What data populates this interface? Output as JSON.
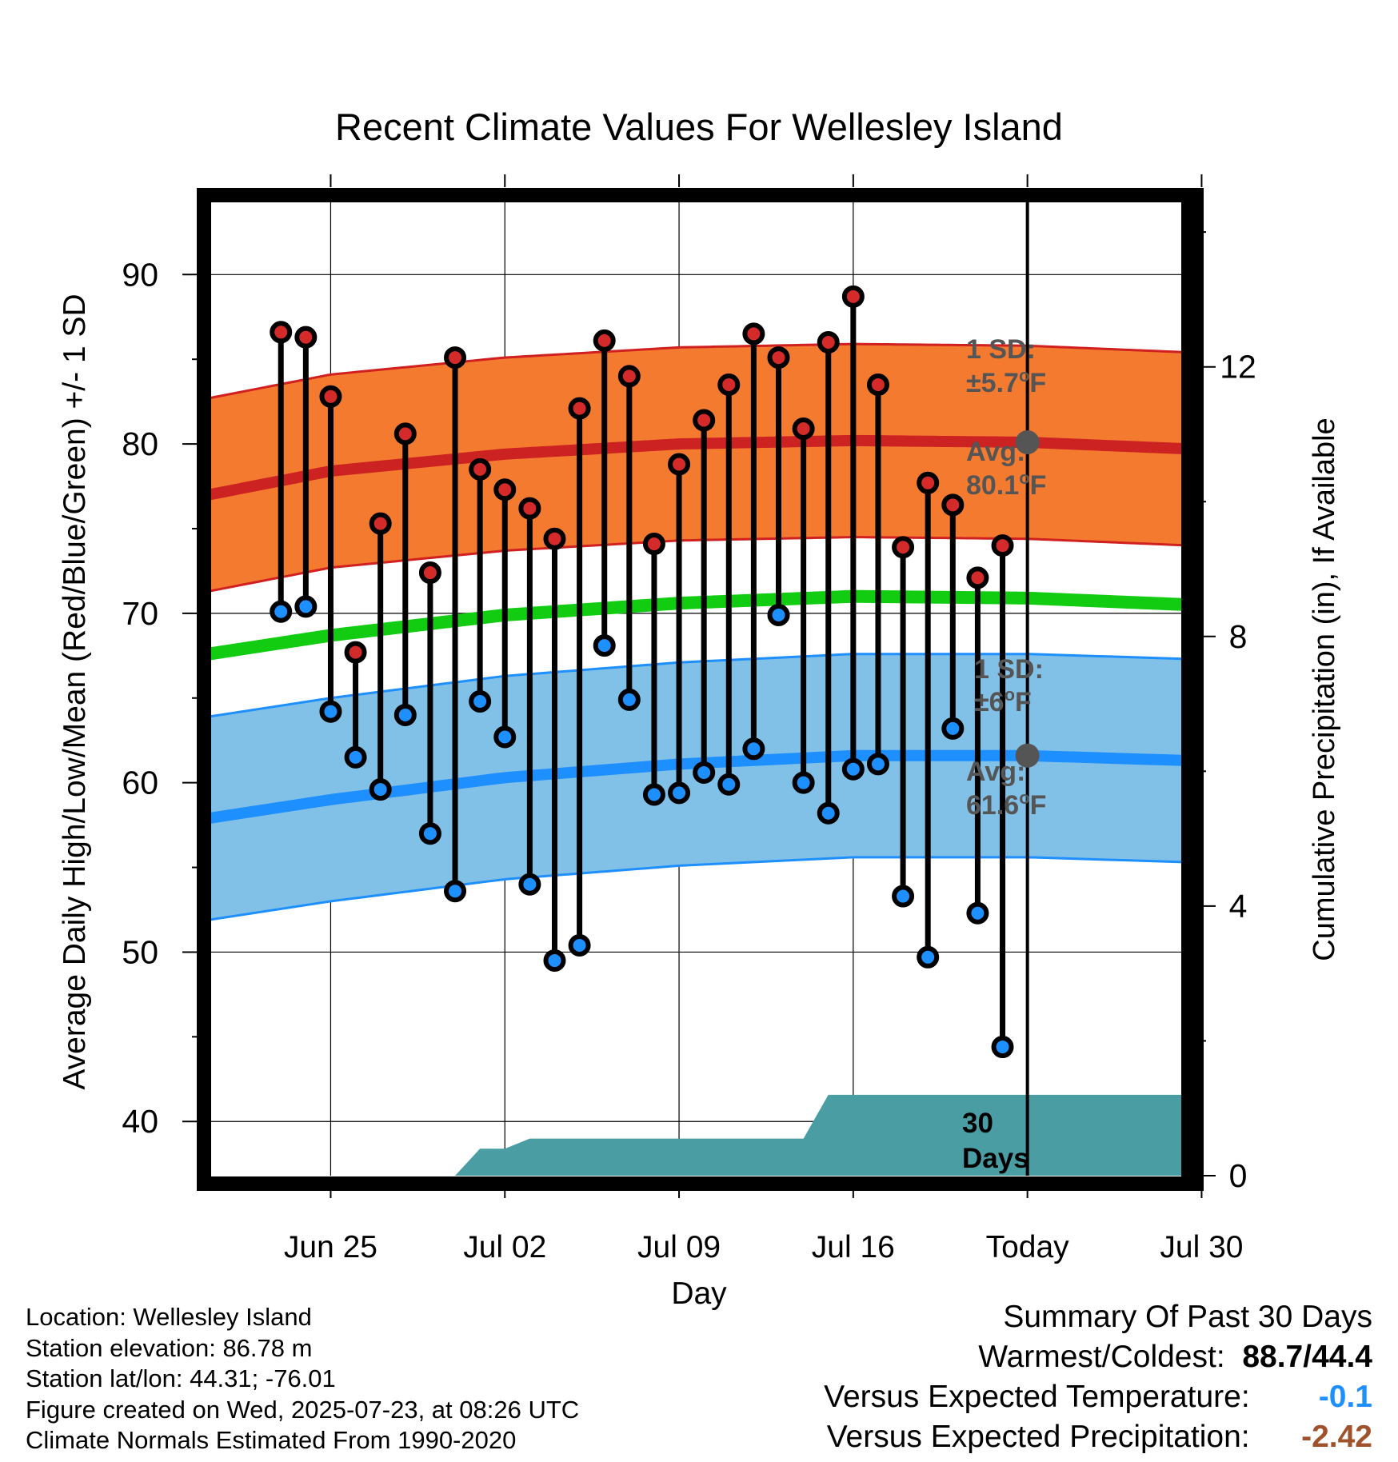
{
  "chart_data": {
    "type": "line",
    "title": "Recent Climate Values For Wellesley Island",
    "xlabel": "Day",
    "ylabel": "Average Daily High/Low/Mean (Red/Blue/Green) +/- 1 SD",
    "y2label": "Cumulative Precipitation (in), If Available",
    "x_range_days": [
      -1.9,
      37.6
    ],
    "x_ticks": [
      {
        "day": 3,
        "label": "Jun 25"
      },
      {
        "day": 10,
        "label": "Jul 02"
      },
      {
        "day": 17,
        "label": "Jul 09"
      },
      {
        "day": 24,
        "label": "Jul 16"
      },
      {
        "day": 31,
        "label": "Today"
      },
      {
        "day": 38,
        "label": "Jul 30"
      }
    ],
    "ylim": [
      36.8,
      94.5
    ],
    "y_ticks": [
      40,
      50,
      60,
      70,
      80,
      90
    ],
    "y2lim": [
      0,
      14.5
    ],
    "y2_ticks": [
      0,
      4,
      8,
      12
    ],
    "grid": true,
    "today_day": 31,
    "colors": {
      "high_band": "#f47a30",
      "high_band_edge": "#d02020",
      "high_avg": "#cc2222",
      "low_band": "#82c1e7",
      "low_band_edge": "#1e8fff",
      "low_avg": "#1e8fff",
      "mean": "#11cc11",
      "precip": "#4a9ea3",
      "high_dot": "#d42a2a",
      "low_dot": "#1e8fff",
      "stats_text": "#555555",
      "summary_temp": "#1e8fff",
      "summary_precip": "#a0522d"
    },
    "normals": {
      "days": [
        -1.9,
        3,
        10,
        17,
        24,
        31,
        37.6
      ],
      "high_avg": [
        77.0,
        78.4,
        79.4,
        80.0,
        80.2,
        80.1,
        79.7
      ],
      "high_sd": 5.7,
      "low_avg": [
        57.9,
        59.0,
        60.3,
        61.1,
        61.6,
        61.6,
        61.3
      ],
      "low_sd": 6.0,
      "mean": [
        67.6,
        68.7,
        69.9,
        70.6,
        71.0,
        70.9,
        70.5
      ]
    },
    "observations": [
      {
        "day": 1,
        "high": 86.6,
        "low": 70.1
      },
      {
        "day": 2,
        "high": 86.3,
        "low": 70.4
      },
      {
        "day": 3,
        "high": 82.8,
        "low": 64.2
      },
      {
        "day": 4,
        "high": 67.7,
        "low": 61.5
      },
      {
        "day": 5,
        "high": 75.3,
        "low": 59.6
      },
      {
        "day": 6,
        "high": 80.6,
        "low": 64.0
      },
      {
        "day": 7,
        "high": 72.4,
        "low": 57.0
      },
      {
        "day": 8,
        "high": 85.1,
        "low": 53.6
      },
      {
        "day": 9,
        "high": 78.5,
        "low": 64.8
      },
      {
        "day": 10,
        "high": 77.3,
        "low": 62.7
      },
      {
        "day": 11,
        "high": 76.2,
        "low": 54.0
      },
      {
        "day": 12,
        "high": 74.4,
        "low": 49.5
      },
      {
        "day": 13,
        "high": 82.1,
        "low": 50.4
      },
      {
        "day": 14,
        "high": 86.1,
        "low": 68.1
      },
      {
        "day": 15,
        "high": 84.0,
        "low": 64.9
      },
      {
        "day": 16,
        "high": 74.1,
        "low": 59.3
      },
      {
        "day": 17,
        "high": 78.8,
        "low": 59.4
      },
      {
        "day": 18,
        "high": 81.4,
        "low": 60.6
      },
      {
        "day": 19,
        "high": 83.5,
        "low": 59.9
      },
      {
        "day": 20,
        "high": 86.5,
        "low": 62.0
      },
      {
        "day": 21,
        "high": 85.1,
        "low": 69.9
      },
      {
        "day": 22,
        "high": 80.9,
        "low": 60.0
      },
      {
        "day": 23,
        "high": 86.0,
        "low": 58.2
      },
      {
        "day": 24,
        "high": 88.7,
        "low": 60.8
      },
      {
        "day": 25,
        "high": 83.5,
        "low": 61.1
      },
      {
        "day": 26,
        "high": 73.9,
        "low": 53.3
      },
      {
        "day": 27,
        "high": 77.7,
        "low": 49.7
      },
      {
        "day": 28,
        "high": 76.4,
        "low": 63.2
      },
      {
        "day": 29,
        "high": 72.1,
        "low": 52.3
      },
      {
        "day": 30,
        "high": 74.0,
        "low": 44.4
      }
    ],
    "precip": {
      "days": [
        8,
        9,
        10,
        11,
        22,
        23,
        37.6
      ],
      "values": [
        0.0,
        0.4,
        0.4,
        0.55,
        0.55,
        1.2,
        1.2
      ]
    },
    "annotations": {
      "high_sd_label": "1 SD:",
      "high_sd_value": "±5.7",
      "high_avg_label": "Avg:",
      "high_avg_value": "80.1",
      "low_sd_label": "1 SD:",
      "low_sd_value": "±6",
      "low_avg_label": "Avg:",
      "low_avg_value": "61.6",
      "degree_symbol": "o",
      "unit": "F",
      "days_count": "30",
      "days_word": "Days"
    }
  },
  "footer": {
    "location": "Location: Wellesley Island",
    "elevation": "Station elevation: 86.78 m",
    "latlon": "Station lat/lon: 44.31; -76.01",
    "created": "Figure created on Wed, 2025-07-23, at 08:26 UTC",
    "normals": "Climate Normals Estimated From 1990-2020"
  },
  "summary": {
    "title": "Summary Of Past 30 Days",
    "warmest_label": "Warmest/Coldest:",
    "warmest_value": "88.7/44.4",
    "temp_label": "Versus Expected Temperature:",
    "temp_value": "-0.1",
    "precip_label": "Versus Expected Precipitation:",
    "precip_value": "-2.42"
  }
}
